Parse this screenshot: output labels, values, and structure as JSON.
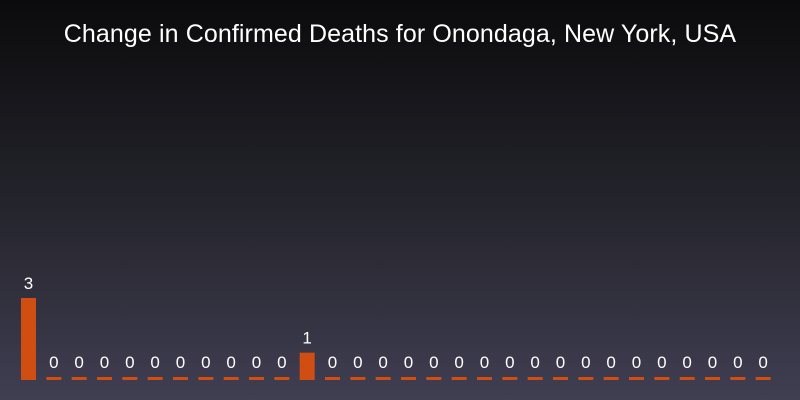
{
  "chart_data": {
    "type": "bar",
    "title": "Change in Confirmed Deaths for Onondaga, New York, USA",
    "xlabel": "",
    "ylabel": "",
    "values": [
      3,
      0,
      0,
      0,
      0,
      0,
      0,
      0,
      0,
      0,
      0,
      1,
      0,
      0,
      0,
      0,
      0,
      0,
      0,
      0,
      0,
      0,
      0,
      0,
      0,
      0,
      0,
      0,
      0,
      0
    ],
    "ylim": [
      0,
      3
    ],
    "grid": false,
    "legend": "none",
    "show_data_labels": true
  },
  "colors": {
    "bar": "#d14e12",
    "label": "#ffffff",
    "background_top": "#0b0b0d",
    "background_bottom": "#403e52"
  }
}
